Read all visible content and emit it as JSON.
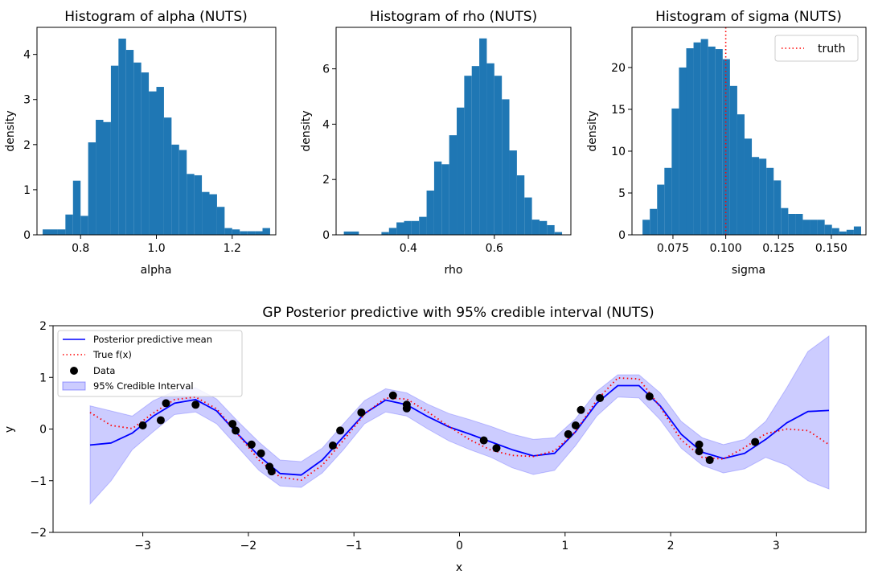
{
  "chart_data": [
    {
      "type": "bar",
      "title": "Histogram of alpha (NUTS)",
      "xlabel": "alpha",
      "ylabel": "density",
      "xlim": [
        0.685,
        1.315
      ],
      "ylim": [
        0,
        4.6
      ],
      "xticks": [
        0.8,
        1.0,
        1.2
      ],
      "xtick_labels": [
        "0.8",
        "1.0",
        "1.2"
      ],
      "yticks": [
        0,
        1,
        2,
        3,
        4
      ],
      "ytick_labels": [
        "0",
        "1",
        "2",
        "3",
        "4"
      ],
      "color": "#1f77b4",
      "bin_start": 0.7,
      "bin_width": 0.02,
      "values": [
        0.12,
        0.12,
        0.12,
        0.45,
        1.2,
        0.42,
        2.05,
        2.55,
        2.5,
        3.75,
        4.35,
        4.1,
        3.82,
        3.6,
        3.18,
        3.28,
        2.6,
        2.0,
        1.88,
        1.35,
        1.32,
        0.95,
        0.9,
        0.62,
        0.15,
        0.12,
        0.08,
        0.08,
        0.08,
        0.15
      ]
    },
    {
      "type": "bar",
      "title": "Histogram of rho (NUTS)",
      "xlabel": "rho",
      "ylabel": "density",
      "xlim": [
        0.232,
        0.778
      ],
      "ylim": [
        0,
        7.5
      ],
      "xticks": [
        0.4,
        0.6
      ],
      "xtick_labels": [
        "0.4",
        "0.6"
      ],
      "yticks": [
        0,
        2,
        4,
        6
      ],
      "ytick_labels": [
        "0",
        "2",
        "4",
        "6"
      ],
      "color": "#1f77b4",
      "bin_start": 0.25,
      "bin_width": 0.0175,
      "values": [
        0.12,
        0.12,
        0,
        0,
        0,
        0.1,
        0.25,
        0.45,
        0.5,
        0.5,
        0.65,
        1.6,
        2.65,
        2.55,
        3.6,
        4.6,
        5.75,
        6.1,
        7.1,
        6.2,
        5.75,
        4.9,
        3.05,
        2.15,
        1.35,
        0.55,
        0.5,
        0.35,
        0.1,
        0
      ]
    },
    {
      "type": "bar",
      "title": "Histogram of sigma (NUTS)",
      "xlabel": "sigma",
      "ylabel": "density",
      "xlim": [
        0.0556,
        0.1664
      ],
      "ylim": [
        0,
        24.8
      ],
      "xticks": [
        0.075,
        0.1,
        0.125,
        0.15
      ],
      "xtick_labels": [
        "0.075",
        "0.100",
        "0.125",
        "0.150"
      ],
      "yticks": [
        0,
        5,
        10,
        15,
        20
      ],
      "ytick_labels": [
        "0",
        "5",
        "10",
        "15",
        "20"
      ],
      "color": "#1f77b4",
      "bin_start": 0.0606,
      "bin_width": 0.00345,
      "values": [
        1.8,
        3.1,
        6.0,
        8.0,
        15.1,
        20.0,
        22.3,
        23.0,
        23.4,
        22.5,
        22.2,
        21.0,
        17.8,
        14.4,
        11.5,
        9.3,
        9.1,
        8.0,
        6.5,
        3.2,
        2.5,
        2.5,
        1.8,
        1.8,
        1.8,
        1.2,
        0.8,
        0.4,
        0.6,
        1.0
      ],
      "vline": {
        "x": 0.1,
        "color": "#ff0000",
        "name": "truth"
      },
      "legend": {
        "position": "top-right",
        "items": [
          "truth"
        ]
      }
    },
    {
      "type": "line",
      "title": "GP Posterior predictive with 95% credible interval (NUTS)",
      "xlabel": "x",
      "ylabel": "y",
      "xlim": [
        -3.85,
        3.85
      ],
      "ylim": [
        -2,
        2
      ],
      "xticks": [
        -3,
        -2,
        -1,
        0,
        1,
        2,
        3
      ],
      "xtick_labels": [
        "−3",
        "−2",
        "−1",
        "0",
        "1",
        "2",
        "3"
      ],
      "yticks": [
        -2,
        -1,
        0,
        1,
        2
      ],
      "ytick_labels": [
        "−2",
        "−1",
        "0",
        "1",
        "2"
      ],
      "legend": {
        "position": "top-left",
        "items": [
          "Posterior predictive mean",
          "True f(x)",
          "Data",
          "95% Credible Interval"
        ]
      },
      "series": [
        {
          "name": "Posterior predictive mean",
          "color": "#0000ff",
          "style": "solid",
          "x": [
            -3.5,
            -3.3,
            -3.1,
            -2.9,
            -2.7,
            -2.5,
            -2.3,
            -2.1,
            -1.9,
            -1.7,
            -1.5,
            -1.3,
            -1.1,
            -0.9,
            -0.7,
            -0.5,
            -0.3,
            -0.1,
            0.1,
            0.3,
            0.5,
            0.7,
            0.9,
            1.1,
            1.3,
            1.5,
            1.7,
            1.9,
            2.1,
            2.3,
            2.5,
            2.7,
            2.9,
            3.1,
            3.3,
            3.5
          ],
          "y": [
            -0.31,
            -0.27,
            -0.08,
            0.25,
            0.5,
            0.57,
            0.35,
            -0.1,
            -0.52,
            -0.86,
            -0.89,
            -0.6,
            -0.15,
            0.3,
            0.56,
            0.47,
            0.24,
            0.04,
            -0.1,
            -0.25,
            -0.4,
            -0.52,
            -0.47,
            -0.05,
            0.5,
            0.84,
            0.84,
            0.45,
            -0.1,
            -0.45,
            -0.57,
            -0.47,
            -0.2,
            0.12,
            0.34,
            0.36
          ]
        },
        {
          "name": "True f(x)",
          "color": "#ff0000",
          "style": "dotted",
          "x": [
            -3.5,
            -3.3,
            -3.1,
            -2.9,
            -2.7,
            -2.5,
            -2.3,
            -2.1,
            -1.9,
            -1.7,
            -1.5,
            -1.3,
            -1.1,
            -0.9,
            -0.7,
            -0.5,
            -0.3,
            -0.1,
            0.1,
            0.3,
            0.5,
            0.7,
            0.9,
            1.1,
            1.3,
            1.5,
            1.7,
            1.9,
            2.1,
            2.3,
            2.5,
            2.7,
            2.9,
            3.1,
            3.3,
            3.5
          ],
          "y": [
            0.32,
            0.07,
            0.01,
            0.31,
            0.57,
            0.62,
            0.39,
            -0.1,
            -0.6,
            -0.93,
            -0.99,
            -0.7,
            -0.22,
            0.29,
            0.6,
            0.58,
            0.33,
            0.05,
            -0.21,
            -0.41,
            -0.51,
            -0.53,
            -0.42,
            -0.05,
            0.56,
            0.99,
            0.97,
            0.43,
            -0.21,
            -0.55,
            -0.58,
            -0.36,
            -0.09,
            0.0,
            -0.03,
            -0.3
          ]
        }
      ],
      "band": {
        "name": "95% Credible Interval",
        "color": "#0000ff",
        "x": [
          -3.5,
          -3.3,
          -3.1,
          -2.9,
          -2.7,
          -2.5,
          -2.3,
          -2.1,
          -1.9,
          -1.7,
          -1.5,
          -1.3,
          -1.1,
          -0.9,
          -0.7,
          -0.5,
          -0.3,
          -0.1,
          0.1,
          0.3,
          0.5,
          0.7,
          0.9,
          1.1,
          1.3,
          1.5,
          1.7,
          1.9,
          2.1,
          2.3,
          2.5,
          2.7,
          2.9,
          3.1,
          3.3,
          3.5
        ],
        "lower": [
          -1.45,
          -1.0,
          -0.4,
          -0.05,
          0.28,
          0.33,
          0.1,
          -0.35,
          -0.8,
          -1.1,
          -1.13,
          -0.85,
          -0.4,
          0.1,
          0.33,
          0.25,
          0.0,
          -0.23,
          -0.4,
          -0.55,
          -0.75,
          -0.88,
          -0.8,
          -0.32,
          0.25,
          0.62,
          0.6,
          0.18,
          -0.37,
          -0.7,
          -0.85,
          -0.77,
          -0.55,
          -0.7,
          -1.0,
          -1.16
        ],
        "upper": [
          0.45,
          0.35,
          0.25,
          0.55,
          0.73,
          0.8,
          0.58,
          0.15,
          -0.25,
          -0.6,
          -0.63,
          -0.37,
          0.1,
          0.55,
          0.78,
          0.7,
          0.48,
          0.3,
          0.18,
          0.05,
          -0.1,
          -0.2,
          -0.17,
          0.2,
          0.73,
          1.05,
          1.05,
          0.7,
          0.15,
          -0.17,
          -0.3,
          -0.2,
          0.15,
          0.8,
          1.5,
          1.8
        ]
      },
      "points": {
        "name": "Data",
        "color": "#000000",
        "x": [
          -3.0,
          -2.83,
          -2.78,
          -2.5,
          -2.15,
          -2.12,
          -1.97,
          -1.88,
          -1.8,
          -1.78,
          -1.2,
          -1.13,
          -0.93,
          -0.63,
          -0.5,
          -0.5,
          0.23,
          0.35,
          1.03,
          1.1,
          1.15,
          1.33,
          1.8,
          2.27,
          2.27,
          2.37,
          2.8
        ],
        "y": [
          0.07,
          0.17,
          0.5,
          0.47,
          0.1,
          -0.03,
          -0.3,
          -0.47,
          -0.73,
          -0.82,
          -0.32,
          -0.03,
          0.32,
          0.65,
          0.47,
          0.4,
          -0.22,
          -0.37,
          -0.1,
          0.07,
          0.37,
          0.6,
          0.63,
          -0.3,
          -0.43,
          -0.6,
          -0.25
        ]
      }
    }
  ]
}
